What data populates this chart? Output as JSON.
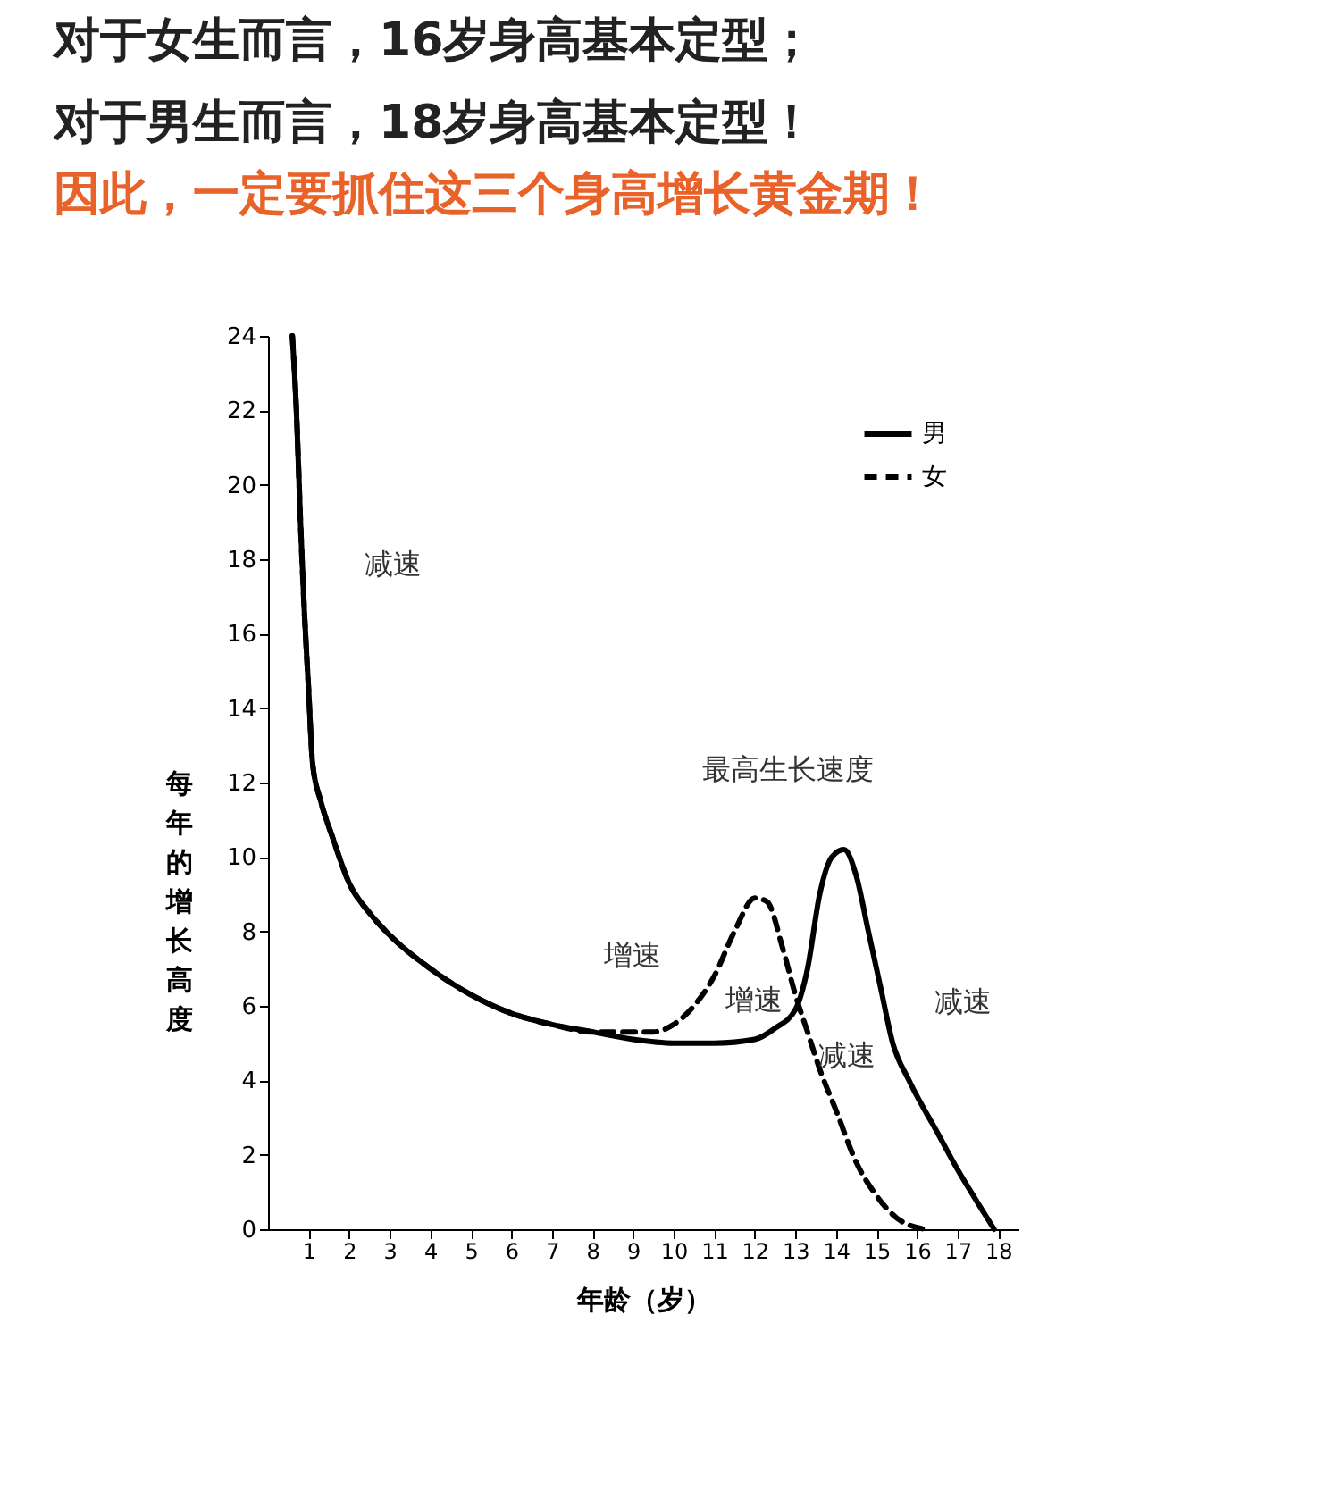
{
  "chart_data": {
    "type": "line",
    "title": "对于女生而言，16岁身高基本定型；对于男生而言，18岁身高基本定型！",
    "subtitle": "因此，一定要抓住这三个身高增长黄金期！",
    "xlabel": "年龄（岁）",
    "ylabel": "每年的增长高度",
    "xlim": [
      0,
      18.5
    ],
    "xticks": [
      1,
      2,
      3,
      4,
      5,
      6,
      7,
      8,
      9,
      10,
      11,
      12,
      13,
      14,
      15,
      16,
      17,
      18
    ],
    "ylim": [
      0,
      24
    ],
    "yticks": [
      0,
      2,
      4,
      6,
      8,
      10,
      12,
      14,
      16,
      18,
      20,
      22,
      24
    ],
    "grid": false,
    "legend": "top right",
    "marker": "none",
    "series": [
      {
        "name": "男",
        "color": "#000000",
        "line_style": "solid",
        "x": [
          0.6,
          0.7,
          0.8,
          0.9,
          1.0,
          1.1,
          1.3,
          1.6,
          2,
          2.5,
          3,
          4,
          5,
          6,
          7,
          8,
          9,
          10,
          11,
          12,
          12.5,
          13,
          13.3,
          13.6,
          13.9,
          14.2,
          14.5,
          14.8,
          15.1,
          15.4,
          15.8,
          16.5,
          17,
          17.5,
          17.9
        ],
        "values": [
          24,
          22,
          19,
          16.5,
          14.5,
          12.5,
          11.5,
          10.5,
          9.3,
          8.5,
          7.9,
          7,
          6.3,
          5.8,
          5.5,
          5.3,
          5.1,
          5,
          5,
          5.1,
          5.4,
          5.9,
          7,
          9,
          10,
          10.2,
          9.5,
          8,
          6.5,
          5,
          4,
          2.6,
          1.6,
          0.7,
          0
        ]
      },
      {
        "name": "女",
        "color": "#000000",
        "line_style": "dashed",
        "x": [
          0.6,
          0.7,
          0.8,
          0.9,
          1.0,
          1.1,
          1.3,
          1.6,
          2,
          2.5,
          3,
          4,
          5,
          6,
          7,
          8,
          9,
          9.5,
          10,
          10.5,
          11,
          11.5,
          12,
          12.3,
          12.7,
          13,
          13.3,
          13.6,
          14,
          14.5,
          15,
          15.5,
          16.2
        ],
        "values": [
          24,
          22,
          19,
          16.5,
          14.5,
          12.5,
          11.5,
          10.5,
          9.3,
          8.5,
          7.9,
          7,
          6.3,
          5.8,
          5.5,
          5.3,
          5.3,
          5.3,
          5.5,
          6,
          6.8,
          8,
          8.9,
          8.8,
          7.5,
          6.3,
          5.3,
          4.3,
          3.2,
          1.8,
          0.9,
          0.3,
          0
        ]
      }
    ],
    "annotations": [
      "减速",
      "最高生长速度",
      "增速",
      "增速",
      "减速",
      "减速"
    ]
  }
}
